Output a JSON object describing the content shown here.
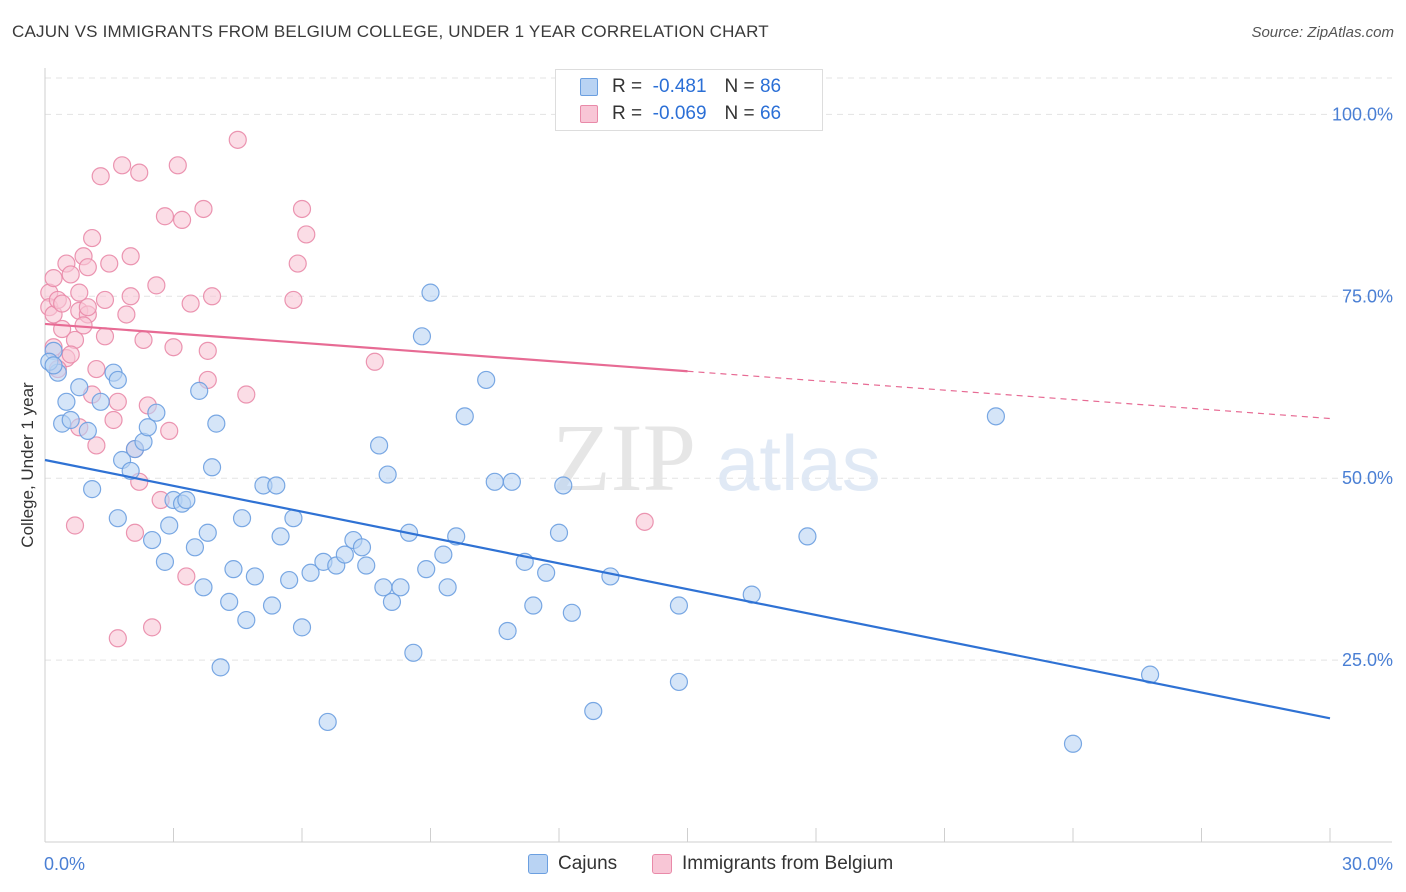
{
  "title": "CAJUN VS IMMIGRANTS FROM BELGIUM COLLEGE, UNDER 1 YEAR CORRELATION CHART",
  "source": "Source: ZipAtlas.com",
  "watermark": {
    "zip": "ZIP",
    "atlas": "atlas"
  },
  "colors": {
    "blue_fill": "#b9d3f3",
    "blue_stroke": "#6b9fe0",
    "blue_line": "#2f72d4",
    "pink_fill": "#f8c6d6",
    "pink_stroke": "#e98aa9",
    "pink_line": "#e76b94",
    "grid": "#e3e3e3",
    "tick_text": "#4a7fd4"
  },
  "legend": {
    "r_label": "R =",
    "n_label": "N =",
    "rows": [
      {
        "r": "-0.481",
        "n": "86"
      },
      {
        "r": "-0.069",
        "n": "66"
      }
    ]
  },
  "chart_data": {
    "type": "scatter",
    "xlabel": "",
    "ylabel": "College, Under 1 year",
    "xlim": [
      0,
      30
    ],
    "ylim": [
      0,
      105
    ],
    "x_tick_labels": [
      "0.0%",
      "30.0%"
    ],
    "y_ticks": [
      25,
      50,
      75,
      100
    ],
    "y_tick_labels": [
      "25.0%",
      "50.0%",
      "75.0%",
      "100.0%"
    ],
    "grid": true,
    "legend_position": "bottom",
    "series": [
      {
        "name": "Cajuns",
        "color": "#6b9fe0",
        "trend": {
          "x0": 0,
          "y0": 52.5,
          "x1": 30,
          "y1": 17.0,
          "dashed_from": null
        },
        "points": [
          [
            0.2,
            67.5
          ],
          [
            0.3,
            64.5
          ],
          [
            0.4,
            57.5
          ],
          [
            0.5,
            60.5
          ],
          [
            0.6,
            58.0
          ],
          [
            0.8,
            62.5
          ],
          [
            1.0,
            56.5
          ],
          [
            1.1,
            48.5
          ],
          [
            1.3,
            60.5
          ],
          [
            1.6,
            64.5
          ],
          [
            1.7,
            63.5
          ],
          [
            1.7,
            44.5
          ],
          [
            1.8,
            52.5
          ],
          [
            2.0,
            51.0
          ],
          [
            2.1,
            54.0
          ],
          [
            2.3,
            55.0
          ],
          [
            2.4,
            57.0
          ],
          [
            2.5,
            41.5
          ],
          [
            2.6,
            59.0
          ],
          [
            2.8,
            38.5
          ],
          [
            2.9,
            43.5
          ],
          [
            3.0,
            47.0
          ],
          [
            3.2,
            46.5
          ],
          [
            3.3,
            47.0
          ],
          [
            3.5,
            40.5
          ],
          [
            3.6,
            62.0
          ],
          [
            3.7,
            35.0
          ],
          [
            3.8,
            42.5
          ],
          [
            3.9,
            51.5
          ],
          [
            4.0,
            57.5
          ],
          [
            4.1,
            24.0
          ],
          [
            4.3,
            33.0
          ],
          [
            4.4,
            37.5
          ],
          [
            4.6,
            44.5
          ],
          [
            4.7,
            30.5
          ],
          [
            4.9,
            36.5
          ],
          [
            5.1,
            49.0
          ],
          [
            5.3,
            32.5
          ],
          [
            5.4,
            49.0
          ],
          [
            5.5,
            42.0
          ],
          [
            5.7,
            36.0
          ],
          [
            5.8,
            44.5
          ],
          [
            6.0,
            29.5
          ],
          [
            6.2,
            37.0
          ],
          [
            6.5,
            38.5
          ],
          [
            6.6,
            16.5
          ],
          [
            6.8,
            38.0
          ],
          [
            7.0,
            39.5
          ],
          [
            7.2,
            41.5
          ],
          [
            7.4,
            40.5
          ],
          [
            7.5,
            38.0
          ],
          [
            7.8,
            54.5
          ],
          [
            7.9,
            35.0
          ],
          [
            8.0,
            50.5
          ],
          [
            8.1,
            33.0
          ],
          [
            8.3,
            35.0
          ],
          [
            8.5,
            42.5
          ],
          [
            8.6,
            26.0
          ],
          [
            8.8,
            69.5
          ],
          [
            8.9,
            37.5
          ],
          [
            9.0,
            75.5
          ],
          [
            9.3,
            39.5
          ],
          [
            9.4,
            35.0
          ],
          [
            9.6,
            42.0
          ],
          [
            9.8,
            58.5
          ],
          [
            10.3,
            63.5
          ],
          [
            10.5,
            49.5
          ],
          [
            10.8,
            29.0
          ],
          [
            10.9,
            49.5
          ],
          [
            11.2,
            38.5
          ],
          [
            11.4,
            32.5
          ],
          [
            11.7,
            37.0
          ],
          [
            12.0,
            42.5
          ],
          [
            12.1,
            49.0
          ],
          [
            12.3,
            31.5
          ],
          [
            12.8,
            18.0
          ],
          [
            13.2,
            36.5
          ],
          [
            14.8,
            32.5
          ],
          [
            14.8,
            22.0
          ],
          [
            16.5,
            34.0
          ],
          [
            17.8,
            42.0
          ],
          [
            22.2,
            58.5
          ],
          [
            24.0,
            13.5
          ],
          [
            25.8,
            23.0
          ],
          [
            0.1,
            66.0
          ],
          [
            0.2,
            65.5
          ]
        ]
      },
      {
        "name": "Immigrants from Belgium",
        "color": "#e98aa9",
        "trend": {
          "x0": 0,
          "y0": 71.2,
          "x1": 30,
          "y1": 58.2,
          "dashed_from": 15.0
        },
        "points": [
          [
            0.1,
            75.5
          ],
          [
            0.1,
            73.5
          ],
          [
            0.2,
            77.5
          ],
          [
            0.2,
            72.5
          ],
          [
            0.3,
            74.5
          ],
          [
            0.4,
            70.5
          ],
          [
            0.5,
            79.5
          ],
          [
            0.5,
            66.5
          ],
          [
            0.6,
            78.0
          ],
          [
            0.7,
            69.0
          ],
          [
            0.7,
            43.5
          ],
          [
            0.8,
            75.5
          ],
          [
            0.8,
            73.0
          ],
          [
            0.9,
            80.5
          ],
          [
            1.0,
            72.5
          ],
          [
            1.0,
            79.0
          ],
          [
            1.1,
            83.0
          ],
          [
            1.1,
            61.5
          ],
          [
            1.2,
            65.0
          ],
          [
            1.3,
            91.5
          ],
          [
            1.4,
            74.5
          ],
          [
            1.5,
            79.5
          ],
          [
            1.6,
            58.0
          ],
          [
            1.7,
            28.0
          ],
          [
            1.7,
            60.5
          ],
          [
            1.8,
            93.0
          ],
          [
            1.9,
            72.5
          ],
          [
            2.0,
            75.0
          ],
          [
            2.0,
            80.5
          ],
          [
            2.1,
            42.5
          ],
          [
            2.2,
            92.0
          ],
          [
            2.3,
            69.0
          ],
          [
            2.4,
            60.0
          ],
          [
            2.5,
            29.5
          ],
          [
            2.6,
            76.5
          ],
          [
            2.7,
            47.0
          ],
          [
            2.8,
            86.0
          ],
          [
            2.9,
            56.5
          ],
          [
            3.0,
            68.0
          ],
          [
            3.1,
            93.0
          ],
          [
            3.2,
            85.5
          ],
          [
            3.3,
            36.5
          ],
          [
            3.4,
            74.0
          ],
          [
            3.7,
            87.0
          ],
          [
            3.8,
            67.5
          ],
          [
            3.8,
            63.5
          ],
          [
            3.9,
            75.0
          ],
          [
            4.5,
            96.5
          ],
          [
            4.7,
            61.5
          ],
          [
            5.8,
            74.5
          ],
          [
            5.9,
            79.5
          ],
          [
            6.0,
            87.0
          ],
          [
            6.1,
            83.5
          ],
          [
            7.7,
            66.0
          ],
          [
            14.0,
            44.0
          ],
          [
            0.3,
            65.0
          ],
          [
            0.4,
            74.0
          ],
          [
            0.6,
            67.0
          ],
          [
            0.9,
            71.0
          ],
          [
            1.2,
            54.5
          ],
          [
            0.2,
            68.0
          ],
          [
            1.0,
            73.5
          ],
          [
            1.4,
            69.5
          ],
          [
            2.1,
            54.0
          ],
          [
            2.2,
            49.5
          ],
          [
            0.8,
            57.0
          ]
        ]
      }
    ]
  }
}
